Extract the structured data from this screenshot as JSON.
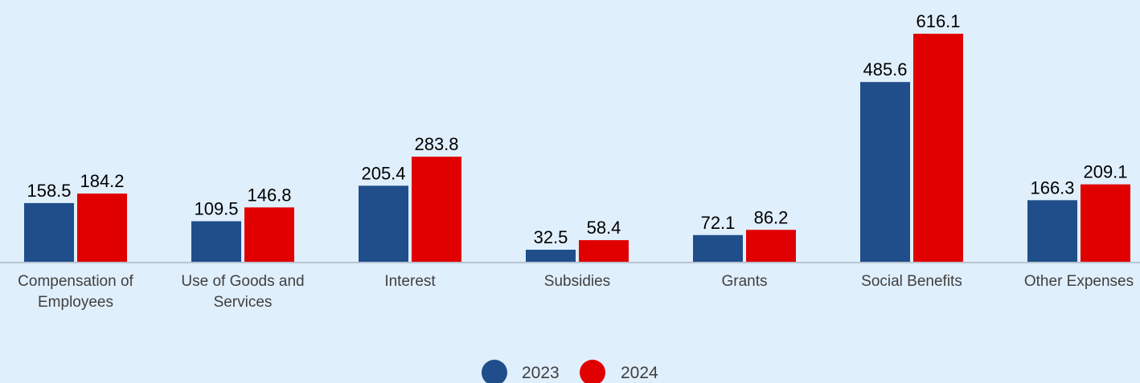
{
  "chart_data": {
    "type": "bar",
    "categories": [
      "Compensation of Employees",
      "Use of Goods and Services",
      "Interest",
      "Subsidies",
      "Grants",
      "Social Benefits",
      "Other Expenses"
    ],
    "category_lines": [
      [
        "Compensation of",
        "Employees"
      ],
      [
        "Use of Goods and",
        "Services"
      ],
      [
        "Interest"
      ],
      [
        "Subsidies"
      ],
      [
        "Grants"
      ],
      [
        "Social Benefits"
      ],
      [
        "Other Expenses"
      ]
    ],
    "series": [
      {
        "name": "2023",
        "color": "#1f4e8a",
        "values": [
          158.5,
          109.5,
          205.4,
          32.5,
          72.1,
          485.6,
          166.3
        ]
      },
      {
        "name": "2024",
        "color": "#e00000",
        "values": [
          184.2,
          146.8,
          283.8,
          58.4,
          86.2,
          616.1,
          209.1
        ]
      }
    ],
    "title": "",
    "xlabel": "",
    "ylabel": "",
    "ylim": [
      0,
      616.1
    ],
    "grid": false,
    "legend_position": "bottom-center",
    "axis_color": "#b8c4d0"
  }
}
